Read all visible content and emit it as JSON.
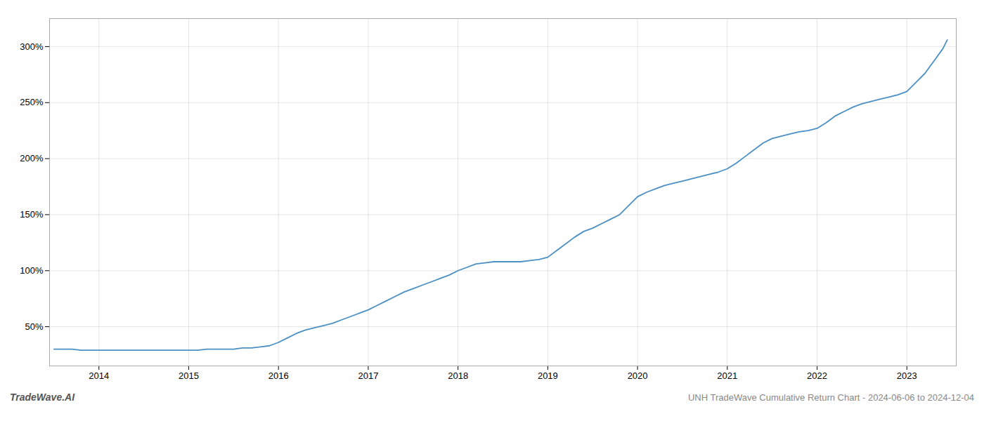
{
  "chart_data": {
    "type": "line",
    "x": [
      2013.5,
      2013.6,
      2013.7,
      2013.8,
      2013.9,
      2014.0,
      2014.1,
      2014.2,
      2014.3,
      2014.4,
      2014.5,
      2014.6,
      2014.7,
      2014.8,
      2014.9,
      2015.0,
      2015.1,
      2015.2,
      2015.3,
      2015.4,
      2015.5,
      2015.6,
      2015.7,
      2015.8,
      2015.9,
      2016.0,
      2016.1,
      2016.2,
      2016.3,
      2016.4,
      2016.5,
      2016.6,
      2016.7,
      2016.8,
      2016.9,
      2017.0,
      2017.1,
      2017.2,
      2017.3,
      2017.4,
      2017.5,
      2017.6,
      2017.7,
      2017.8,
      2017.9,
      2018.0,
      2018.1,
      2018.2,
      2018.3,
      2018.4,
      2018.5,
      2018.6,
      2018.7,
      2018.8,
      2018.9,
      2019.0,
      2019.1,
      2019.2,
      2019.3,
      2019.4,
      2019.5,
      2019.6,
      2019.7,
      2019.8,
      2019.9,
      2020.0,
      2020.1,
      2020.2,
      2020.3,
      2020.4,
      2020.5,
      2020.6,
      2020.7,
      2020.8,
      2020.9,
      2021.0,
      2021.1,
      2021.2,
      2021.3,
      2021.4,
      2021.5,
      2021.6,
      2021.7,
      2021.8,
      2021.9,
      2022.0,
      2022.1,
      2022.2,
      2022.3,
      2022.4,
      2022.5,
      2022.6,
      2022.7,
      2022.8,
      2022.9,
      2023.0,
      2023.1,
      2023.2,
      2023.3,
      2023.4,
      2023.45
    ],
    "values": [
      30,
      30,
      30,
      29,
      29,
      29,
      29,
      29,
      29,
      29,
      29,
      29,
      29,
      29,
      29,
      29,
      29,
      30,
      30,
      30,
      30,
      31,
      31,
      32,
      33,
      36,
      40,
      44,
      47,
      49,
      51,
      53,
      56,
      59,
      62,
      65,
      69,
      73,
      77,
      81,
      84,
      87,
      90,
      93,
      96,
      100,
      103,
      106,
      107,
      108,
      108,
      108,
      108,
      109,
      110,
      112,
      118,
      124,
      130,
      135,
      138,
      142,
      146,
      150,
      158,
      166,
      170,
      173,
      176,
      178,
      180,
      182,
      184,
      186,
      188,
      191,
      196,
      202,
      208,
      214,
      218,
      220,
      222,
      224,
      225,
      227,
      232,
      238,
      242,
      246,
      249,
      251,
      253,
      255,
      257,
      260,
      268,
      276,
      287,
      298,
      306
    ],
    "color": "#4a90c4",
    "xlim": [
      2013.45,
      2023.55
    ],
    "xticks": [
      2014,
      2015,
      2016,
      2017,
      2018,
      2019,
      2020,
      2021,
      2022,
      2023
    ],
    "ylim": [
      15,
      325
    ],
    "yticks": [
      {
        "value": 50,
        "label": "50%"
      },
      {
        "value": 100,
        "label": "100%"
      },
      {
        "value": 150,
        "label": "150%"
      },
      {
        "value": 200,
        "label": "200%"
      },
      {
        "value": 250,
        "label": "250%"
      },
      {
        "value": 300,
        "label": "300%"
      }
    ],
    "grid": true,
    "annotations": [
      "TradeWave.AI",
      "UNH TradeWave Cumulative Return Chart - 2024-06-06 to 2024-12-04"
    ]
  }
}
